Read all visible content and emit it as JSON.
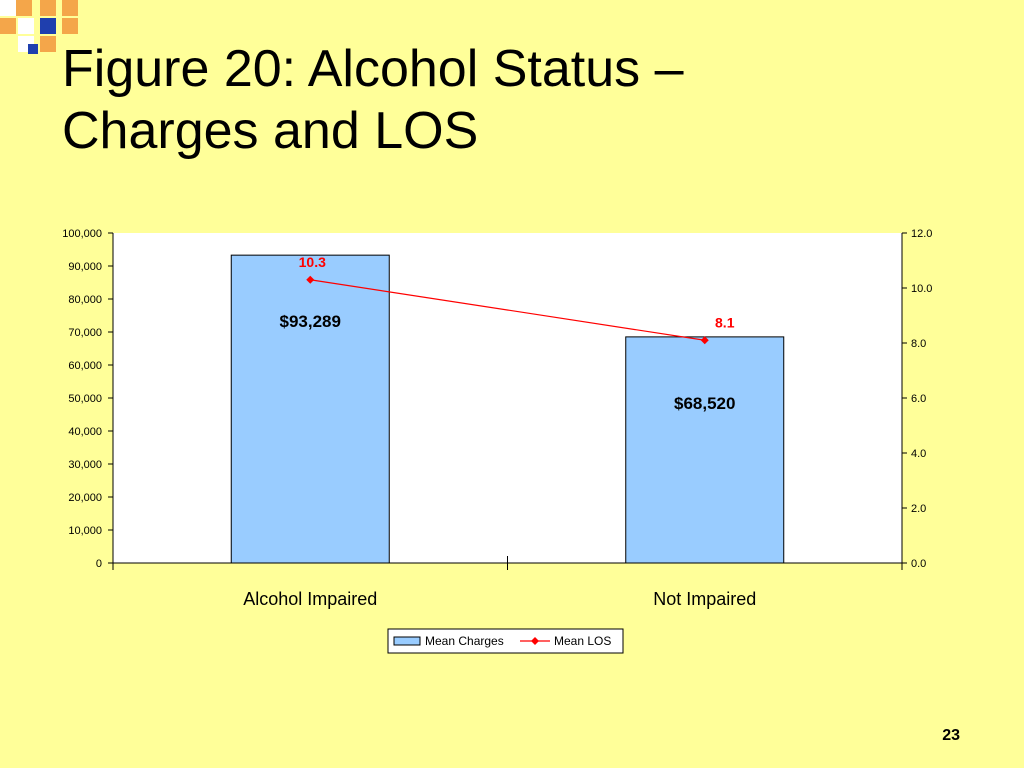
{
  "slide": {
    "title_line1": "Figure 20: Alcohol Status –",
    "title_line2": "Charges and LOS",
    "page_number": "23",
    "colors": {
      "background": "#FFFF99",
      "decor_orange": "#F4A64A",
      "decor_blue": "#1F3FAE",
      "decor_light": "#FFFFFF"
    }
  },
  "chart_data": {
    "type": "bar",
    "categories": [
      "Alcohol Impaired",
      "Not Impaired"
    ],
    "series": [
      {
        "name": "Mean Charges",
        "type": "bar",
        "axis": "left",
        "values": [
          93289,
          68520
        ],
        "labels": [
          "$93,289",
          "$68,520"
        ],
        "color": "#99CCFF"
      },
      {
        "name": "Mean LOS",
        "type": "line",
        "axis": "right",
        "values": [
          10.3,
          8.1
        ],
        "labels": [
          "10.3",
          "8.1"
        ],
        "color": "#FF0000"
      }
    ],
    "y_left": {
      "ylim": [
        0,
        100000
      ],
      "ticks": [
        "0",
        "10,000",
        "20,000",
        "30,000",
        "40,000",
        "50,000",
        "60,000",
        "70,000",
        "80,000",
        "90,000",
        "100,000"
      ]
    },
    "y_right": {
      "ylim": [
        0,
        12
      ],
      "ticks": [
        "0.0",
        "2.0",
        "4.0",
        "6.0",
        "8.0",
        "10.0",
        "12.0"
      ]
    },
    "legend_position": "bottom",
    "grid": false
  }
}
